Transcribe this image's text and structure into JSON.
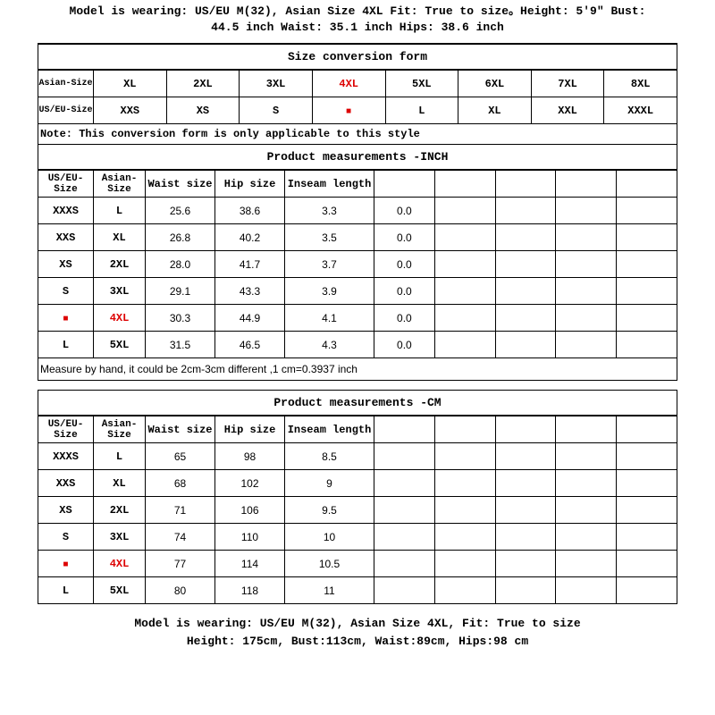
{
  "header": {
    "line1": "Model is wearing: US/EU M(32), Asian Size 4XL   Fit: True to size。Height: 5'9\" Bust:",
    "line2": "44.5 inch Waist: 35.1 inch Hips: 38.6 inch"
  },
  "conversion": {
    "title": "Size conversion form",
    "row_labels": [
      "Asian-Size",
      "US/EU-Size"
    ],
    "asian": [
      "XL",
      "2XL",
      "3XL",
      "4XL",
      "5XL",
      "6XL",
      "7XL",
      "8XL"
    ],
    "useu": [
      "XXS",
      "XS",
      "S",
      "M",
      "L",
      "XL",
      "XXL",
      "XXXL"
    ],
    "highlight_col": 3,
    "note": "Note: This conversion form is only applicable to this style",
    "highlight_color": "#d00"
  },
  "inch": {
    "title": "Product measurements -INCH",
    "columns": [
      "US/EU-Size",
      "Asian-Size",
      "Waist size",
      "Hip size",
      "Inseam length",
      "",
      "",
      "",
      "",
      ""
    ],
    "rows": [
      [
        "XXXS",
        "L",
        "25.6",
        "38.6",
        "3.3",
        "0.0",
        "",
        "",
        "",
        ""
      ],
      [
        "XXS",
        "XL",
        "26.8",
        "40.2",
        "3.5",
        "0.0",
        "",
        "",
        "",
        ""
      ],
      [
        "XS",
        "2XL",
        "28.0",
        "41.7",
        "3.7",
        "0.0",
        "",
        "",
        "",
        ""
      ],
      [
        "S",
        "3XL",
        "29.1",
        "43.3",
        "3.9",
        "0.0",
        "",
        "",
        "",
        ""
      ],
      [
        "M",
        "4XL",
        "30.3",
        "44.9",
        "4.1",
        "0.0",
        "",
        "",
        "",
        ""
      ],
      [
        "L",
        "5XL",
        "31.5",
        "46.5",
        "4.3",
        "0.0",
        "",
        "",
        "",
        ""
      ]
    ],
    "highlight_row": 4,
    "note": "Measure by hand, it could be 2cm-3cm different ,1 cm=0.3937 inch"
  },
  "cm": {
    "title": "Product measurements -CM",
    "columns": [
      "US/EU-Size",
      "Asian-Size",
      "Waist size",
      "Hip size",
      "Inseam length",
      "",
      "",
      "",
      "",
      ""
    ],
    "rows": [
      [
        "XXXS",
        "L",
        "65",
        "98",
        "8.5",
        "",
        "",
        "",
        "",
        ""
      ],
      [
        "XXS",
        "XL",
        "68",
        "102",
        "9",
        "",
        "",
        "",
        "",
        ""
      ],
      [
        "XS",
        "2XL",
        "71",
        "106",
        "9.5",
        "",
        "",
        "",
        "",
        ""
      ],
      [
        "S",
        "3XL",
        "74",
        "110",
        "10",
        "",
        "",
        "",
        "",
        ""
      ],
      [
        "M",
        "4XL",
        "77",
        "114",
        "10.5",
        "",
        "",
        "",
        "",
        ""
      ],
      [
        "L",
        "5XL",
        "80",
        "118",
        "11",
        "",
        "",
        "",
        "",
        ""
      ]
    ],
    "highlight_row": 4
  },
  "footer": {
    "line1": "Model is wearing: US/EU M(32), Asian Size 4XL, Fit: True to size",
    "line2": "Height: 175cm, Bust:113cm, Waist:89cm, Hips:98 cm"
  }
}
